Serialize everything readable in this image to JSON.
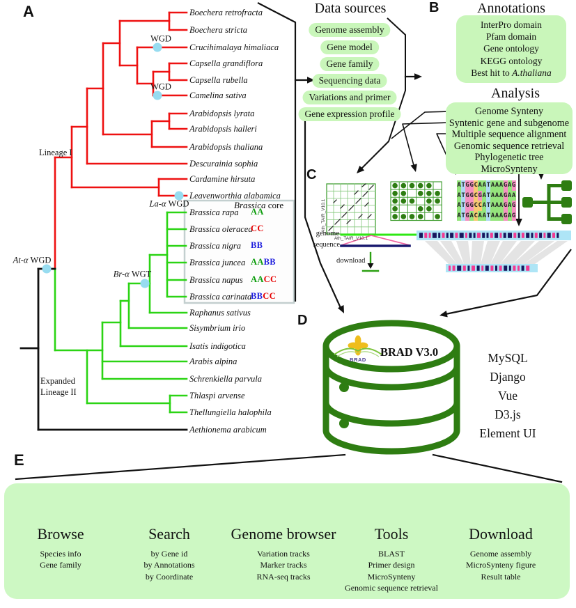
{
  "panel_labels": {
    "a": "A",
    "b": "B",
    "c": "C",
    "d": "D",
    "e": "E"
  },
  "colors": {
    "tree_red": "#ee1111",
    "tree_green": "#2bd414",
    "box_green": "#c9f6ba",
    "dark_green": "#2e7d12",
    "wgd_blue": "#97dcf0",
    "bar_cyan": "#aee5f6",
    "block_navy": "#17175e",
    "block_pink": "#f23a92",
    "genome_line": "#2ee813",
    "sequence_line": "#19196e",
    "pink_line": "#f0609e",
    "aa_green": "#0a9c0a",
    "cc_red": "#e60000",
    "bb_blue": "#1f1fdd"
  },
  "tree": {
    "lineage1_label": "Lineage I",
    "lineage2_label_line1": "Expanded",
    "lineage2_label_line2": "Lineage II",
    "event_labels": {
      "wgd_top": "WGD",
      "wgd_mid": "WGD",
      "la": "La-α WGD",
      "at": "At-α WGD",
      "br": "Br-α WGT"
    },
    "brassica_core_label": "Brassica core",
    "species": [
      "Boechera retrofracta",
      "Boechera stricta",
      "Crucihimalaya himaliaca",
      "Capsella grandiflora",
      "Capsella rubella",
      "Camelina sativa",
      "Arabidopsis lyrata",
      "Arabidopsis halleri",
      "Arabidopsis thaliana",
      "Descurainia sophia",
      "Cardamine hirsuta",
      "Leavenworthia alabamica",
      "Brassica rapa",
      "Brassica oleracea",
      "Brassica nigra",
      "Brassica juncea",
      "Brassica napus",
      "Brassica carinata",
      "Raphanus sativus",
      "Sisymbrium irio",
      "Isatis indigotica",
      "Arabis alpina",
      "Schrenkiella parvula",
      "Thlaspi arvense",
      "Thellungiella halophila",
      "Aethionema arabicum"
    ],
    "genome_types": [
      [
        [
          "AA",
          "aa_green"
        ]
      ],
      [
        [
          "CC",
          "cc_red"
        ]
      ],
      [
        [
          "BB",
          "bb_blue"
        ]
      ],
      [
        [
          "AA",
          "aa_green"
        ],
        [
          "BB",
          "bb_blue"
        ]
      ],
      [
        [
          "AA",
          "aa_green"
        ],
        [
          "CC",
          "cc_red"
        ]
      ],
      [
        [
          "BB",
          "bb_blue"
        ],
        [
          "CC",
          "cc_red"
        ]
      ]
    ]
  },
  "data_sources": {
    "title": "Data sources",
    "items": [
      "Genome assembly",
      "Gene model",
      "Gene family",
      "Sequencing data",
      "Variations and primer",
      "Gene expression profile"
    ]
  },
  "annotations": {
    "title": "Annotations",
    "items": [
      "InterPro domain",
      "Pfam domain",
      "Gene ontology",
      "KEGG ontology",
      "Best hit to A.thaliana"
    ]
  },
  "analysis": {
    "title": "Analysis",
    "items": [
      "Genome Synteny",
      "Syntenic gene and subgenome",
      "Multiple sequence alignment",
      "Genomic sequence retrieval",
      "Phylogenetic tree",
      "MicroSynteny"
    ]
  },
  "panel_c": {
    "dotplot_x_label": "Ath_TAIR_V10.1",
    "dotplot_y_label": "Ath_TAIR_V10.1",
    "genome_label": "genome",
    "sequence_label": "sequence",
    "download_label": "download",
    "alignment": [
      "ATGGCAATAAAGAG",
      "ATGGCGATAAAGAA",
      "ATGGCCATAAAGAG",
      "ATGACAATAAAGAG"
    ],
    "base_colors": {
      "A": "#95e57c",
      "T": "#aed9f2",
      "G": "#f590c2",
      "C": "#f7ca72"
    }
  },
  "database": {
    "logo_text": "BRAD",
    "title": "BRAD V3.0",
    "tech": [
      "MySQL",
      "Django",
      "Vue",
      "D3.js",
      "Element UI"
    ]
  },
  "features": [
    {
      "title": "Browse",
      "icon": "eye-icon",
      "items": [
        "Species info",
        "Gene family"
      ]
    },
    {
      "title": "Search",
      "icon": "search-icon",
      "items": [
        "by Gene id",
        "by Annotations",
        "by Coordinate"
      ]
    },
    {
      "title": "Genome browser",
      "icon": "sliders-icon",
      "items": [
        "Variation tracks",
        "Marker tracks",
        "RNA-seq tracks"
      ]
    },
    {
      "title": "Tools",
      "icon": "tools-icon",
      "items": [
        "BLAST",
        "Primer design",
        "MicroSynteny",
        "Genomic sequence retrieval"
      ]
    },
    {
      "title": "Download",
      "icon": "download-icon",
      "items": [
        "Genome assembly",
        "MicroSynteny figure",
        "Result table"
      ]
    }
  ]
}
